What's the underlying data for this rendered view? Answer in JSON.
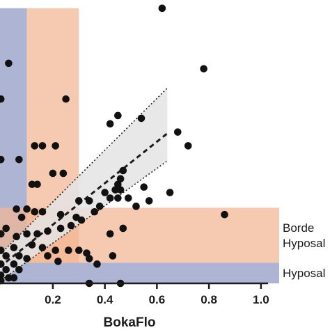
{
  "chart_data": {
    "type": "scatter",
    "title": "",
    "xlabel": "BokaFlo",
    "ylabel": "",
    "xlim": [
      -0.03,
      1.07
    ],
    "ylim": [
      0,
      1.03
    ],
    "grid": false,
    "x_ticks": [
      {
        "value": 0.2,
        "label": "0.2"
      },
      {
        "value": 0.4,
        "label": "0.4"
      },
      {
        "value": 0.6,
        "label": "0.6"
      },
      {
        "value": 0.8,
        "label": "0.8"
      },
      {
        "value": 1.0,
        "label": "1.0"
      }
    ],
    "bands": [
      {
        "orientation": "vertical",
        "from": -0.03,
        "to": 0.1,
        "y_from": 0.075,
        "y_to": 1.0,
        "color": "#8f97c2"
      },
      {
        "orientation": "vertical",
        "from": 0.1,
        "to": 0.3,
        "y_from": 0.075,
        "y_to": 1.0,
        "color": "#f2b593"
      },
      {
        "orientation": "horizontal",
        "from": 0.0,
        "to": 0.075,
        "x_from": -0.03,
        "x_to": 1.07,
        "color": "#8f97c2",
        "label": "Hyposal"
      },
      {
        "orientation": "horizontal",
        "from": 0.075,
        "to": 0.275,
        "x_from": -0.03,
        "x_to": 1.07,
        "color": "#f2b593",
        "label_lines": [
          "Borde",
          "Hyposal"
        ]
      }
    ],
    "regression": {
      "line": {
        "x0": -0.03,
        "y0": 0.04,
        "x1": 0.64,
        "y1": 0.545
      },
      "ci_upper": {
        "x0": -0.03,
        "y0": 0.08,
        "x1": 0.64,
        "y1": 0.71
      },
      "ci_lower": {
        "x0": -0.03,
        "y0": -0.01,
        "x1": 0.64,
        "y1": 0.445
      },
      "ci_fill": "#e4e4e4"
    },
    "series": [
      {
        "points": [
          [
            0.62,
            1.0
          ],
          [
            0.78,
            0.78
          ],
          [
            0.03,
            0.8
          ],
          [
            0.25,
            0.67
          ],
          [
            0.0,
            0.67
          ],
          [
            0.54,
            0.6
          ],
          [
            0.45,
            0.61
          ],
          [
            0.42,
            0.58
          ],
          [
            0.72,
            0.5
          ],
          [
            0.68,
            0.55
          ],
          [
            0.0,
            0.45
          ],
          [
            0.13,
            0.5
          ],
          [
            0.16,
            0.5
          ],
          [
            0.21,
            0.5
          ],
          [
            0.07,
            0.45
          ],
          [
            0.2,
            0.4
          ],
          [
            0.24,
            0.4
          ],
          [
            0.47,
            0.41
          ],
          [
            0.46,
            0.38
          ],
          [
            0.45,
            0.36
          ],
          [
            0.44,
            0.34
          ],
          [
            0.46,
            0.34
          ],
          [
            0.55,
            0.35
          ],
          [
            0.65,
            0.33
          ],
          [
            0.12,
            0.36
          ],
          [
            0.14,
            0.36
          ],
          [
            0.4,
            0.33
          ],
          [
            0.49,
            0.31
          ],
          [
            0.42,
            0.31
          ],
          [
            0.45,
            0.31
          ],
          [
            0.52,
            0.28
          ],
          [
            0.57,
            0.3
          ],
          [
            0.3,
            0.3
          ],
          [
            0.34,
            0.3
          ],
          [
            0.38,
            0.28
          ],
          [
            0.36,
            0.26
          ],
          [
            0.29,
            0.24
          ],
          [
            0.31,
            0.23
          ],
          [
            0.23,
            0.25
          ],
          [
            0.27,
            0.21
          ],
          [
            0.86,
            0.25
          ],
          [
            0.06,
            0.27
          ],
          [
            0.1,
            0.27
          ],
          [
            0.13,
            0.26
          ],
          [
            0.16,
            0.26
          ],
          [
            0.08,
            0.24
          ],
          [
            0.02,
            0.2
          ],
          [
            0.06,
            0.17
          ],
          [
            0.1,
            0.18
          ],
          [
            0.14,
            0.18
          ],
          [
            0.18,
            0.19
          ],
          [
            0.23,
            0.2
          ],
          [
            0.0,
            0.18
          ],
          [
            0.05,
            0.13
          ],
          [
            0.12,
            0.14
          ],
          [
            0.16,
            0.13
          ],
          [
            0.21,
            0.12
          ],
          [
            0.26,
            0.12
          ],
          [
            0.3,
            0.12
          ],
          [
            0.33,
            0.11
          ],
          [
            0.42,
            0.18
          ],
          [
            0.47,
            0.2
          ],
          [
            0.0,
            0.12
          ],
          [
            0.02,
            0.1
          ],
          [
            0.07,
            0.1
          ],
          [
            0.1,
            0.09
          ],
          [
            0.18,
            0.1
          ],
          [
            0.22,
            0.08
          ],
          [
            0.34,
            0.09
          ],
          [
            0.37,
            0.07
          ],
          [
            0.43,
            0.1
          ],
          [
            0.0,
            0.07
          ],
          [
            0.05,
            0.07
          ],
          [
            0.02,
            0.05
          ],
          [
            0.07,
            0.05
          ],
          [
            0.0,
            0.03
          ],
          [
            0.05,
            0.02
          ],
          [
            0.03,
            0.02
          ],
          [
            0.0,
            0.01
          ],
          [
            0.34,
            0.0
          ],
          [
            0.46,
            0.0
          ]
        ]
      }
    ]
  }
}
